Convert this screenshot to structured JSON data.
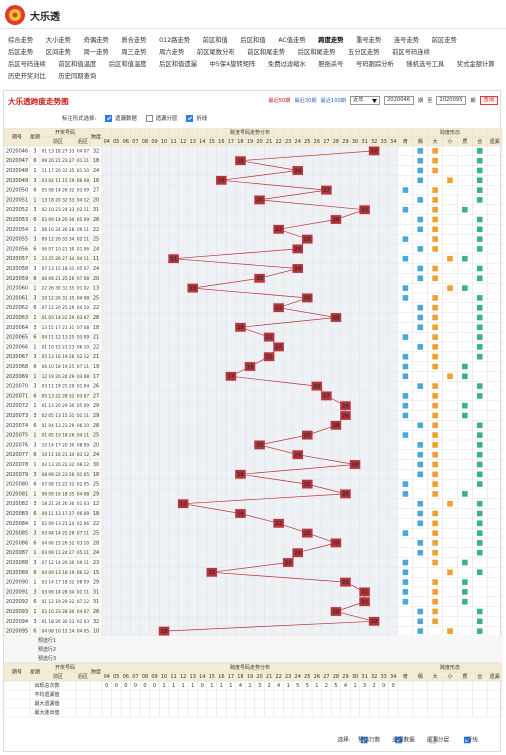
{
  "header": {
    "title": "大乐透"
  },
  "nav": [
    [
      "综合走势",
      "大小走势",
      "奇偶走势",
      "质合走势",
      "012路走势",
      "前区和值",
      "后区和值",
      "AC值走势",
      "跨度走势",
      "重号走势",
      "连号走势",
      "前区走势"
    ],
    [
      "后区走势",
      "区间走势",
      "周一走势",
      "周三走势",
      "周六走势",
      "前区尾数分布",
      "前区和尾走势",
      "后区和尾走势",
      "五分区走势",
      "前区号码连续"
    ],
    [
      "后区号码连续",
      "前区和值温度",
      "后区和值温度",
      "后区和值遗漏",
      "中5保4旋转矩阵",
      "免费过滤缩水",
      "胆拖杀号",
      "号码跟踪分析",
      "随机选号工具",
      "奖式金额计算"
    ],
    [
      "历史开奖对比",
      "历史同期查询"
    ]
  ],
  "nav_active": [
    0,
    8
  ],
  "panel": {
    "title": "大乐透跨度走势图",
    "ranges": [
      "最近50期",
      "最近30期",
      "最近100期"
    ],
    "year": "近年",
    "from": "2020046",
    "period_word": "期",
    "to_word": "至",
    "to": "2020095",
    "query": "查询"
  },
  "options": {
    "label": "标注形式选择:",
    "items": [
      "遗漏数据",
      "遗漏分层",
      "折线"
    ],
    "checked": [
      true,
      false,
      true
    ]
  },
  "table": {
    "headers": {
      "period": "期号",
      "weekday": "星期",
      "draw": "开奖号码",
      "front": "前区",
      "back": "后区",
      "span": "跨度",
      "trend": "跨度号码走势分布",
      "shape": "跨度形态"
    },
    "span_ticks": [
      "04",
      "05",
      "06",
      "07",
      "08",
      "09",
      "10",
      "11",
      "12",
      "13",
      "14",
      "15",
      "16",
      "17",
      "18",
      "19",
      "20",
      "21",
      "22",
      "23",
      "24",
      "25",
      "26",
      "27",
      "28",
      "29",
      "30",
      "31",
      "32",
      "33",
      "34"
    ],
    "shape_cols": [
      "奇",
      "偶",
      "大",
      "小",
      "质",
      "合",
      "遗漏"
    ],
    "rows": [
      {
        "period": "2020046",
        "weekday": 3,
        "front": "01 13 18 27 33",
        "back": "04 07",
        "span": 32
      },
      {
        "period": "2020047",
        "weekday": 6,
        "front": "09 20 21 23 27",
        "back": "01 11",
        "span": 18
      },
      {
        "period": "2020048",
        "weekday": 1,
        "front": "11 17 20 33 35",
        "back": "01 10",
        "span": 24
      },
      {
        "period": "2020049",
        "weekday": 3,
        "front": "03 04 11 15 19",
        "back": "06 08",
        "span": 16
      },
      {
        "period": "2020050",
        "weekday": 6,
        "front": "05 08 14 26 32",
        "back": "03 09",
        "span": 27
      },
      {
        "period": "2020051",
        "weekday": 1,
        "front": "13 18 20 32 33",
        "back": "04 12",
        "span": 20
      },
      {
        "period": "2020052",
        "weekday": 3,
        "front": "02 10 23 24 33",
        "back": "02 11",
        "span": 31
      },
      {
        "period": "2020053",
        "weekday": 6,
        "front": "02 09 14 20 30",
        "back": "05 09",
        "span": 28
      },
      {
        "period": "2020054",
        "weekday": 1,
        "front": "06 10 24 26 28",
        "back": "09 11",
        "span": 22
      },
      {
        "period": "2020055",
        "weekday": 3,
        "front": "09 12 20 33 34",
        "back": "02 11",
        "span": 25
      },
      {
        "period": "2020056",
        "weekday": 6,
        "front": "06 07 10 21 30",
        "back": "01 06",
        "span": 24
      },
      {
        "period": "2020057",
        "weekday": 1,
        "front": "23 25 26 27 34",
        "back": "04 11",
        "span": 11
      },
      {
        "period": "2020058",
        "weekday": 3,
        "front": "07 13 15 18 31",
        "back": "05 07",
        "span": 24
      },
      {
        "period": "2020059",
        "weekday": 6,
        "front": "06 09 21 25 26",
        "back": "07 08",
        "span": 20
      },
      {
        "period": "2020060",
        "weekday": 1,
        "front": "22 26 30 31 35",
        "back": "01 02",
        "span": 13
      },
      {
        "period": "2020061",
        "weekday": 3,
        "front": "10 12 26 31 35",
        "back": "04 08",
        "span": 25
      },
      {
        "period": "2020062",
        "weekday": 6,
        "front": "07 12 20 25 29",
        "back": "04 10",
        "span": 22
      },
      {
        "period": "2020063",
        "weekday": 1,
        "front": "01 03 14 22 29",
        "back": "03 07",
        "span": 28
      },
      {
        "period": "2020064",
        "weekday": 3,
        "front": "13 15 17 21 31",
        "back": "07 08",
        "span": 18
      },
      {
        "period": "2020065",
        "weekday": 6,
        "front": "04 11 12 13 25",
        "back": "03 09",
        "span": 21
      },
      {
        "period": "2020066",
        "weekday": 1,
        "front": "01 10 15 21 23",
        "back": "06 10",
        "span": 22
      },
      {
        "period": "2020067",
        "weekday": 3,
        "front": "05 13 16 19 26",
        "back": "02 12",
        "span": 21
      },
      {
        "period": "2020068",
        "weekday": 6,
        "front": "06 10 18 19 25",
        "back": "07 11",
        "span": 19
      },
      {
        "period": "2020069",
        "weekday": 1,
        "front": "12 19 20 24 29",
        "back": "03 08",
        "span": 17
      },
      {
        "period": "2020070",
        "weekday": 3,
        "front": "03 11 19 25 29",
        "back": "01 04",
        "span": 26
      },
      {
        "period": "2020071",
        "weekday": 6,
        "front": "05 13 22 28 32",
        "back": "03 07",
        "span": 27
      },
      {
        "period": "2020072",
        "weekday": 1,
        "front": "01 13 20 29 30",
        "back": "05 09",
        "span": 29
      },
      {
        "period": "2020073",
        "weekday": 3,
        "front": "02 05 13 15 31",
        "back": "01 11",
        "span": 29
      },
      {
        "period": "2020074",
        "weekday": 6,
        "front": "01 04 13 23 29",
        "back": "06 10",
        "span": 28
      },
      {
        "period": "2020075",
        "weekday": 1,
        "front": "01 05 10 18 26",
        "back": "04 11",
        "span": 25
      },
      {
        "period": "2020076",
        "weekday": 3,
        "front": "10 14 17 20 30",
        "back": "08 09",
        "span": 20
      },
      {
        "period": "2020077",
        "weekday": 6,
        "front": "10 11 16 21 34",
        "back": "03 12",
        "span": 24
      },
      {
        "period": "2020078",
        "weekday": 1,
        "front": "02 13 20 22 32",
        "back": "08 12",
        "span": 30
      },
      {
        "period": "2020079",
        "weekday": 3,
        "front": "08 09 22 23 26",
        "back": "01 05",
        "span": 18
      },
      {
        "period": "2020080",
        "weekday": 6,
        "front": "07 08 15 22 32",
        "back": "02 05",
        "span": 25
      },
      {
        "period": "2020081",
        "weekday": 1,
        "front": "06 09 16 18 35",
        "back": "04 08",
        "span": 29
      },
      {
        "period": "2020082",
        "weekday": 3,
        "front": "18 21 24 26 30",
        "back": "01 03",
        "span": 12
      },
      {
        "period": "2020083",
        "weekday": 6,
        "front": "09 11 13 17 27",
        "back": "06 09",
        "span": 18
      },
      {
        "period": "2020084",
        "weekday": 1,
        "front": "02 09 13 21 24",
        "back": "02 06",
        "span": 22
      },
      {
        "period": "2020085",
        "weekday": 3,
        "front": "03 04 14 25 28",
        "back": "07 11",
        "span": 25
      },
      {
        "period": "2020086",
        "weekday": 6,
        "front": "04 06 15 26 32",
        "back": "03 10",
        "span": 28
      },
      {
        "period": "2020087",
        "weekday": 1,
        "front": "03 09 11 24 27",
        "back": "05 11",
        "span": 24
      },
      {
        "period": "2020088",
        "weekday": 3,
        "front": "07 12 14 26 30",
        "back": "09 11",
        "span": 23
      },
      {
        "period": "2020089",
        "weekday": 6,
        "front": "04 09 13 18 19",
        "back": "06 12",
        "span": 15
      },
      {
        "period": "2020090",
        "weekday": 1,
        "front": "03 14 17 18 32",
        "back": "08 09",
        "span": 29
      },
      {
        "period": "2020091",
        "weekday": 3,
        "front": "03 09 14 28 34",
        "back": "01 11",
        "span": 31
      },
      {
        "period": "2020092",
        "weekday": 6,
        "front": "01 12 19 29 32",
        "back": "07 12",
        "span": 31
      },
      {
        "period": "2020093",
        "weekday": 1,
        "front": "02 10 23 28 30",
        "back": "04 07",
        "span": 28
      },
      {
        "period": "2020094",
        "weekday": 3,
        "front": "01 18 26 30 33",
        "back": "02 03",
        "span": 32
      },
      {
        "period": "2020095",
        "weekday": 6,
        "front": "04 08 10 12 14",
        "back": "04 05",
        "span": 10
      }
    ],
    "preselect": [
      "预选行1",
      "预选行2",
      "预选行3"
    ],
    "stats": [
      {
        "label": "出现总次数",
        "values": [
          0,
          0,
          0,
          0,
          0,
          0,
          1,
          1,
          1,
          1,
          0,
          1,
          1,
          1,
          4,
          1,
          3,
          2,
          4,
          1,
          5,
          5,
          1,
          2,
          5,
          4,
          1,
          3,
          2,
          0,
          0
        ]
      },
      {
        "label": "平均遗漏值"
      },
      {
        "label": "最大遗漏值"
      },
      {
        "label": "最大连出值"
      }
    ]
  },
  "footer": {
    "label": "选择:",
    "items": [
      "预选行数",
      "遗漏数据",
      "遗漏分层",
      "折线"
    ],
    "checked": [
      true,
      true,
      false,
      true
    ]
  }
}
